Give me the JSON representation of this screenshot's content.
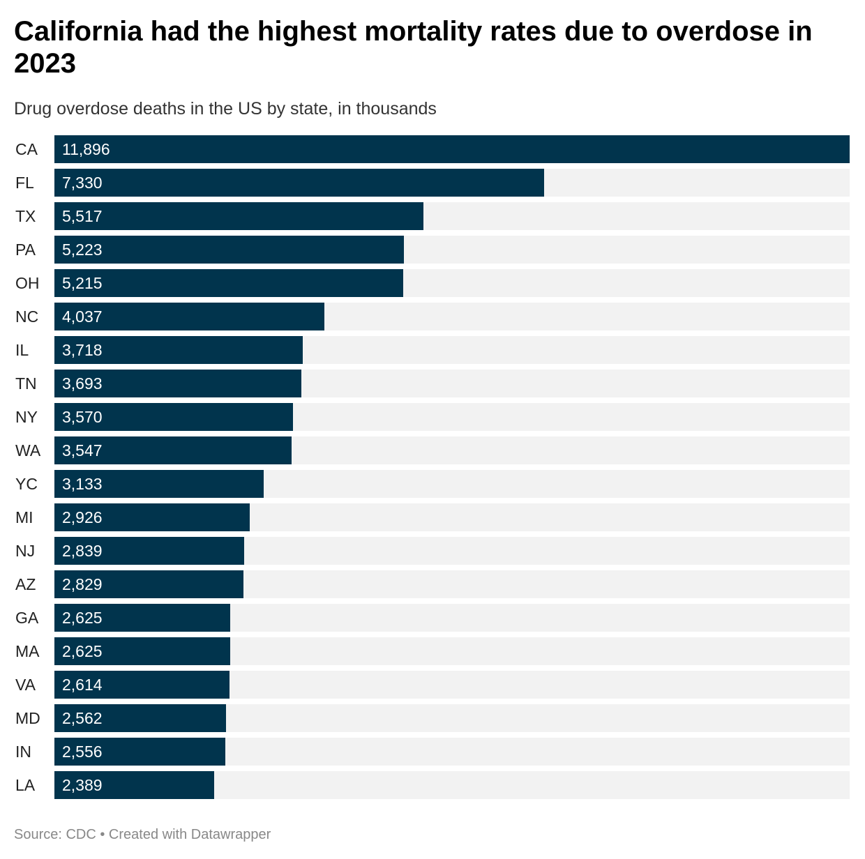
{
  "header": {
    "title": "California had the highest mortality rates due to overdose in 2023",
    "subtitle": "Drug overdose deaths in the US by state, in thousands"
  },
  "footer": {
    "text": "Source: CDC • Created with Datawrapper"
  },
  "colors": {
    "bar": "#01344d",
    "track": "#f2f2f2"
  },
  "chart_data": {
    "type": "bar",
    "orientation": "horizontal",
    "title": "California had the highest mortality rates due to overdose in 2023",
    "subtitle": "Drug overdose deaths in the US by state, in thousands",
    "xlabel": "",
    "ylabel": "",
    "xlim": [
      0,
      11896
    ],
    "categories": [
      "CA",
      "FL",
      "TX",
      "PA",
      "OH",
      "NC",
      "IL",
      "TN",
      "NY",
      "WA",
      "YC",
      "MI",
      "NJ",
      "AZ",
      "GA",
      "MA",
      "VA",
      "MD",
      "IN",
      "LA"
    ],
    "values": [
      11896,
      7330,
      5517,
      5223,
      5215,
      4037,
      3718,
      3693,
      3570,
      3547,
      3133,
      2926,
      2839,
      2829,
      2625,
      2625,
      2614,
      2562,
      2556,
      2389
    ],
    "value_labels": [
      "11,896",
      "7,330",
      "5,517",
      "5,223",
      "5,215",
      "4,037",
      "3,718",
      "3,693",
      "3,570",
      "3,547",
      "3,133",
      "2,926",
      "2,839",
      "2,829",
      "2,625",
      "2,625",
      "2,614",
      "2,562",
      "2,556",
      "2,389"
    ],
    "source": "Source: CDC • Created with Datawrapper"
  }
}
